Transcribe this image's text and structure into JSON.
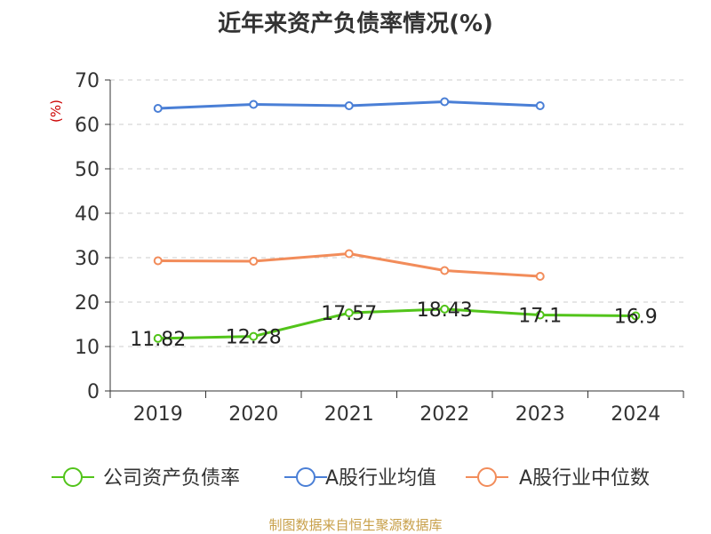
{
  "chart_data": {
    "type": "line",
    "title": "近年来资产负债率情况(%)",
    "ylabel": "(%)",
    "xlabel": "",
    "ylim": [
      0,
      70
    ],
    "yticks": [
      0,
      10,
      20,
      30,
      40,
      50,
      60,
      70
    ],
    "categories": [
      "2019",
      "2020",
      "2021",
      "2022",
      "2023",
      "2024"
    ],
    "grid": true,
    "legend_position": "bottom",
    "series": [
      {
        "name": "公司资产负债率",
        "color": "#52c41a",
        "values": [
          11.82,
          12.28,
          17.57,
          18.43,
          17.1,
          16.9
        ],
        "labels": [
          "11.82",
          "12.28",
          "17.57",
          "18.43",
          "17.1",
          "16.9"
        ],
        "show_labels": true
      },
      {
        "name": "A股行业均值",
        "color": "#4a7fd6",
        "values": [
          63.6,
          64.5,
          64.2,
          65.1,
          64.2,
          null
        ],
        "show_labels": false
      },
      {
        "name": "A股行业中位数",
        "color": "#f28c5a",
        "values": [
          29.3,
          29.2,
          30.9,
          27.1,
          25.8,
          null
        ],
        "show_labels": false
      }
    ]
  },
  "source": "制图数据来自恒生聚源数据库"
}
